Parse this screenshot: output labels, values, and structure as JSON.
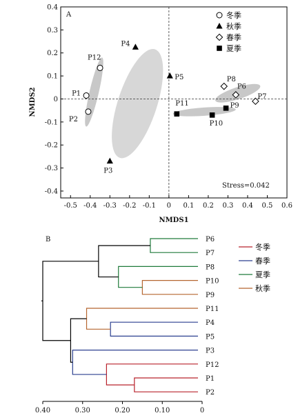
{
  "chart_data": [
    {
      "type": "scatter",
      "panel_label": "A",
      "xlabel": "NMDS1",
      "ylabel": "NMDS2",
      "xlim": [
        -0.55,
        0.6
      ],
      "ylim": [
        -0.43,
        0.4
      ],
      "xticks": [
        "-0.5",
        "-0.4",
        "-0.3",
        "-0.2",
        "-0.1",
        "0",
        "0.1",
        "0.2",
        "0.3",
        "0.4",
        "0.5",
        "0.6"
      ],
      "yticks": [
        "0.4",
        "0.3",
        "0.2",
        "0.1",
        "0",
        "-0.1",
        "-0.2",
        "-0.3",
        "-0.4"
      ],
      "reference_lines": {
        "x": 0,
        "y": 0
      },
      "annotation": "Stress=0.042",
      "legend_position": "top-right",
      "series": [
        {
          "name": "冬季",
          "marker": "open-circle",
          "points": [
            {
              "label": "P1",
              "x": -0.42,
              "y": 0.015
            },
            {
              "label": "P2",
              "x": -0.41,
              "y": -0.055
            },
            {
              "label": "P12",
              "x": -0.35,
              "y": 0.135
            }
          ]
        },
        {
          "name": "秋季",
          "marker": "filled-triangle",
          "points": [
            {
              "label": "P3",
              "x": -0.3,
              "y": -0.27
            },
            {
              "label": "P4",
              "x": -0.17,
              "y": 0.225
            },
            {
              "label": "P5",
              "x": 0.005,
              "y": 0.1
            }
          ]
        },
        {
          "name": "春季",
          "marker": "open-diamond",
          "points": [
            {
              "label": "P8",
              "x": 0.28,
              "y": 0.055
            },
            {
              "label": "P6",
              "x": 0.34,
              "y": 0.018
            },
            {
              "label": "P7",
              "x": 0.44,
              "y": -0.01
            }
          ]
        },
        {
          "name": "夏季",
          "marker": "filled-square",
          "points": [
            {
              "label": "P11",
              "x": 0.04,
              "y": -0.065
            },
            {
              "label": "P10",
              "x": 0.22,
              "y": -0.07
            },
            {
              "label": "P9",
              "x": 0.29,
              "y": -0.04
            }
          ]
        }
      ]
    },
    {
      "type": "dendrogram",
      "panel_label": "B",
      "xlim": [
        0.4,
        0
      ],
      "xticks": [
        "0.40",
        "0.30",
        "0.20",
        "0.10",
        "0"
      ],
      "leaves": [
        "P6",
        "P7",
        "P8",
        "P10",
        "P9",
        "P11",
        "P4",
        "P5",
        "P3",
        "P12",
        "P1",
        "P2"
      ],
      "legend_position": "top-right",
      "legend": [
        {
          "name": "冬季",
          "color": "#b8202a"
        },
        {
          "name": "春季",
          "color": "#2a3f8f"
        },
        {
          "name": "夏季",
          "color": "#1e7a3a"
        },
        {
          "name": "秋季",
          "color": "#b5652f"
        }
      ],
      "merges": [
        {
          "a": "P6",
          "b": "P7",
          "height": 0.13,
          "color": "#1e7a3a"
        },
        {
          "a": "P10",
          "b": "P9",
          "height": 0.15,
          "color": "#b5652f"
        },
        {
          "a": "P8",
          "b": "P10+P9",
          "height": 0.21,
          "color": "#1e7a3a"
        },
        {
          "a": "P6+P7",
          "b": "P8+P10+P9",
          "height": 0.26,
          "color": "#000000"
        },
        {
          "a": "P4",
          "b": "P5",
          "height": 0.23,
          "color": "#2a3f8f"
        },
        {
          "a": "P11",
          "b": "P4+P5",
          "height": 0.29,
          "color": "#b5652f"
        },
        {
          "a": "P1",
          "b": "P2",
          "height": 0.17,
          "color": "#b8202a"
        },
        {
          "a": "P12",
          "b": "P1+P2",
          "height": 0.24,
          "color": "#b8202a"
        },
        {
          "a": "P3",
          "b": "P12+P1+P2",
          "height": 0.325,
          "color": "#2a3f8f"
        },
        {
          "a": "P11+P4+P5",
          "b": "P3+P12+P1+P2",
          "height": 0.33,
          "color": "#000000"
        },
        {
          "a": "top",
          "b": "bottom",
          "height": 0.4,
          "color": "#000000"
        }
      ]
    }
  ]
}
